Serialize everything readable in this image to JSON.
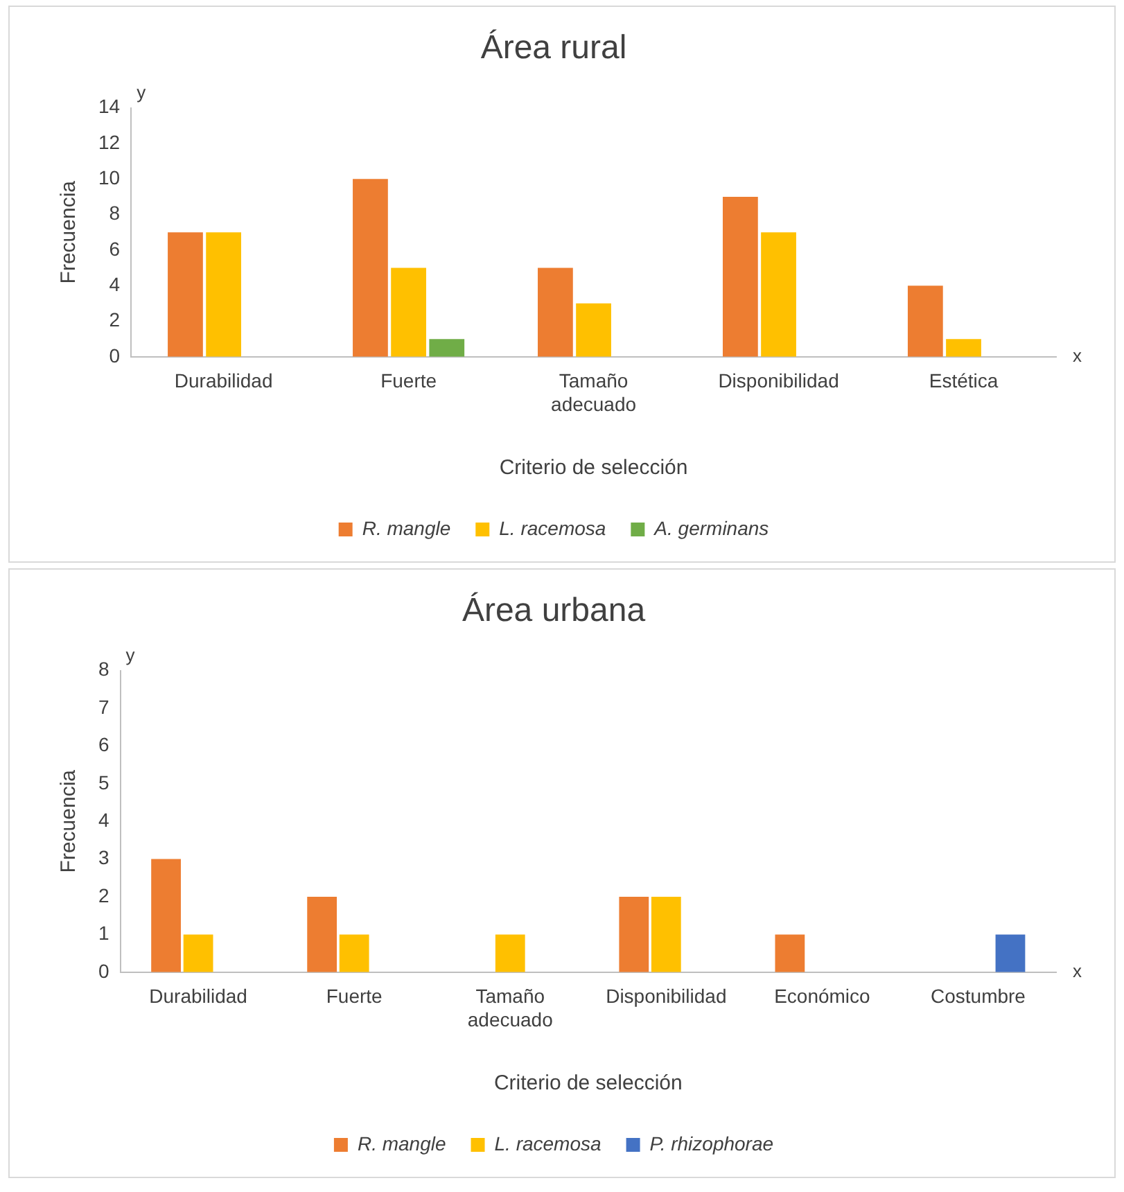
{
  "chart_data": [
    {
      "type": "bar",
      "title": "Área rural",
      "xlabel": "Criterio de selección",
      "ylabel": "Frecuencia",
      "annotations": [
        "y",
        "x"
      ],
      "categories": [
        "Durabilidad",
        "Fuerte",
        "Tamaño adecuado",
        "Disponibilidad",
        "Estética"
      ],
      "series": [
        {
          "name": "R. mangle",
          "color": "#ed7d31",
          "values": [
            7,
            10,
            5,
            9,
            4
          ]
        },
        {
          "name": "L. racemosa",
          "color": "#ffc000",
          "values": [
            7,
            5,
            3,
            7,
            1
          ]
        },
        {
          "name": "A. germinans",
          "color": "#70ad47",
          "values": [
            0,
            1,
            0,
            0,
            0
          ]
        }
      ],
      "ylim": [
        0,
        14
      ],
      "yticks": [
        0,
        2,
        4,
        6,
        8,
        10,
        12,
        14
      ],
      "grid": false,
      "legend": "bottom"
    },
    {
      "type": "bar",
      "title": "Área urbana",
      "xlabel": "Criterio de selección",
      "ylabel": "Frecuencia",
      "annotations": [
        "y",
        "x"
      ],
      "categories": [
        "Durabilidad",
        "Fuerte",
        "Tamaño adecuado",
        "Disponibilidad",
        "Económico",
        "Costumbre"
      ],
      "series": [
        {
          "name": "R. mangle",
          "color": "#ed7d31",
          "values": [
            3,
            2,
            0,
            2,
            1,
            0
          ]
        },
        {
          "name": "L. racemosa",
          "color": "#ffc000",
          "values": [
            1,
            1,
            1,
            2,
            0,
            0
          ]
        },
        {
          "name": "P. rhizophorae",
          "color": "#4472c4",
          "values": [
            0,
            0,
            0,
            0,
            0,
            1
          ]
        }
      ],
      "ylim": [
        0,
        8
      ],
      "yticks": [
        0,
        1,
        2,
        3,
        4,
        5,
        6,
        7,
        8
      ],
      "grid": false,
      "legend": "bottom"
    }
  ]
}
